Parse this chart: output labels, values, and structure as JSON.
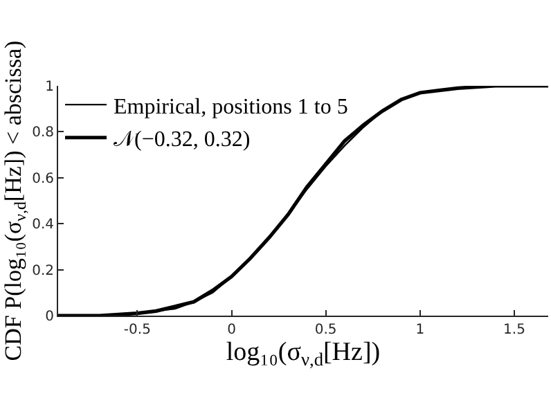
{
  "chart_data": {
    "type": "line",
    "xlabel": "log₁₀(σ$_{ν,d}$[Hz])",
    "ylabel": "CDF P(log₁₀(σ$_{ν,d}$[Hz]) < abscissa)",
    "x": [
      -0.92,
      -0.7,
      -0.5,
      -0.4,
      -0.3,
      -0.2,
      -0.1,
      0,
      0.1,
      0.2,
      0.3,
      0.4,
      0.5,
      0.6,
      0.7,
      0.8,
      0.9,
      1.0,
      1.1,
      1.2,
      1.4,
      1.68
    ],
    "series": [
      {
        "name": "Empirical, positions 1 to 5",
        "color": "#000000",
        "values": [
          0,
          0,
          0.01,
          0.02,
          0.03,
          0.06,
          0.1,
          0.17,
          0.25,
          0.34,
          0.44,
          0.55,
          0.65,
          0.74,
          0.82,
          0.89,
          0.94,
          0.97,
          0.98,
          0.99,
          1,
          1
        ]
      },
      {
        "name": "𝒩(−0.32, 0.32)",
        "color": "#000000",
        "values": [
          0,
          0,
          0.01,
          0.02,
          0.04,
          0.06,
          0.11,
          0.17,
          0.25,
          0.34,
          0.44,
          0.56,
          0.66,
          0.76,
          0.83,
          0.89,
          0.94,
          0.97,
          0.98,
          0.99,
          1,
          1
        ]
      }
    ],
    "xlim": [
      -0.92,
      1.68
    ],
    "xticks": [
      -0.5,
      0,
      0.5,
      1,
      1.5
    ],
    "ylim": [
      0,
      1
    ],
    "yticks": [
      0,
      0.2,
      0.4,
      0.6,
      0.8,
      1
    ],
    "legend": "top left",
    "marker": "none",
    "line_style": "solid"
  }
}
